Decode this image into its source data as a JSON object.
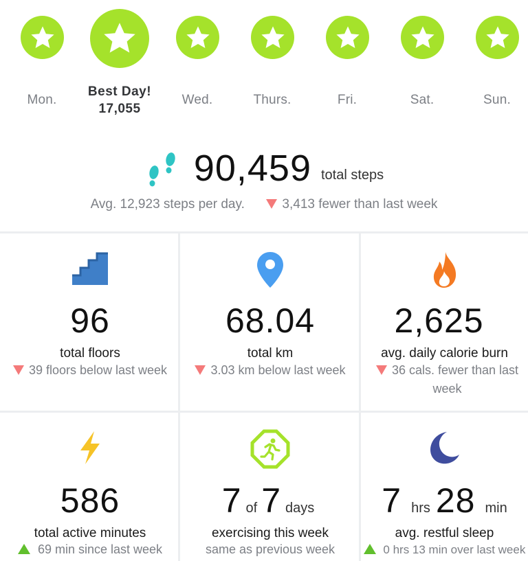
{
  "week": {
    "days": [
      {
        "label": "Mon.",
        "best": false
      },
      {
        "label": "Best Day!",
        "best": true,
        "steps": "17,055"
      },
      {
        "label": "Wed.",
        "best": false
      },
      {
        "label": "Thurs.",
        "best": false
      },
      {
        "label": "Fri.",
        "best": false
      },
      {
        "label": "Sat.",
        "best": false
      },
      {
        "label": "Sun.",
        "best": false
      }
    ],
    "badge_color": "#a5e22b"
  },
  "steps": {
    "total": "90,459",
    "unit": "total steps",
    "average": "Avg. 12,923 steps per day.",
    "change": "3,413 fewer than last week",
    "icon": "footsteps-icon"
  },
  "stats": {
    "floors": {
      "value": "96",
      "label": "total floors",
      "change": "39 floors below last week",
      "trend": "down",
      "icon": "stairs-icon"
    },
    "distance": {
      "value": "68.04",
      "label": "total km",
      "change": "3.03 km below last week",
      "trend": "down",
      "icon": "location-pin-icon"
    },
    "calories": {
      "value": "2,625",
      "label": "avg. daily calorie burn",
      "change": "36 cals. fewer than last week",
      "trend": "down",
      "icon": "flame-icon"
    },
    "active": {
      "value": "586",
      "label": "total active minutes",
      "change": "69 min since last week",
      "trend": "up",
      "icon": "lightning-icon"
    },
    "exercise": {
      "value_a": "7",
      "of": "of",
      "value_b": "7",
      "unit": "days",
      "label": "exercising this week",
      "change": "same as previous week",
      "icon": "running-person-icon"
    },
    "sleep": {
      "hours": "7",
      "hours_unit": "hrs",
      "minutes": "28",
      "minutes_unit": "min",
      "label": "avg. restful sleep",
      "change": "0 hrs 13 min over last week",
      "trend": "up",
      "icon": "moon-icon"
    }
  },
  "colors": {
    "accent_green": "#a5e22b",
    "down": "#f47a7a",
    "up": "#61bf2d",
    "steps_teal": "#2ec4c4"
  }
}
